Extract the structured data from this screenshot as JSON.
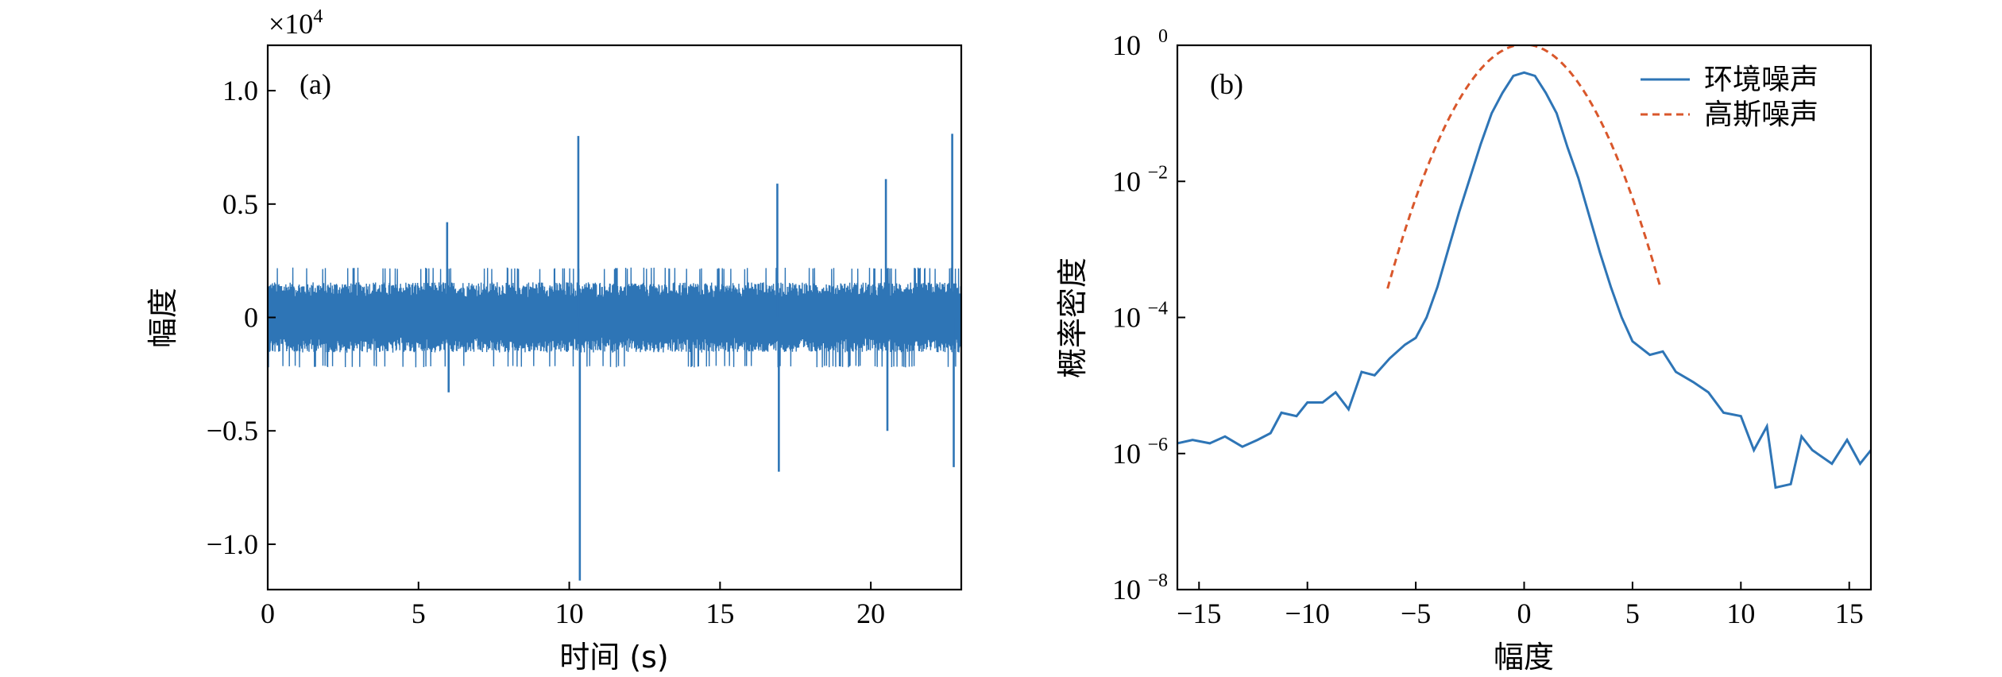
{
  "chart_data": [
    {
      "panel": "(a)",
      "type": "line",
      "xlabel": "时间 (s)",
      "ylabel": "幅度",
      "xlim": [
        0,
        23
      ],
      "ylim": [
        -1.2,
        1.2
      ],
      "y_scale_note": "×10^4",
      "x_ticks": [
        0,
        5,
        10,
        15,
        20
      ],
      "x_tick_labels": [
        "0",
        "5",
        "10",
        "15",
        "20"
      ],
      "y_ticks": [
        -1.0,
        -0.5,
        0,
        0.5,
        1.0
      ],
      "y_tick_labels": [
        "−1.0",
        "−0.5",
        "0",
        "0.5",
        "1.0"
      ],
      "color": "#2E75B6",
      "noise_band": [
        -0.2,
        0.2
      ],
      "spikes": [
        {
          "x": 5.95,
          "y": 0.42
        },
        {
          "x": 6.0,
          "y": -0.33
        },
        {
          "x": 10.3,
          "y": 0.8
        },
        {
          "x": 10.35,
          "y": -1.16
        },
        {
          "x": 16.9,
          "y": 0.59
        },
        {
          "x": 16.95,
          "y": -0.68
        },
        {
          "x": 20.5,
          "y": 0.61
        },
        {
          "x": 20.55,
          "y": -0.5
        },
        {
          "x": 22.7,
          "y": 0.81
        },
        {
          "x": 22.75,
          "y": -0.66
        }
      ]
    },
    {
      "panel": "(b)",
      "type": "line",
      "xlabel": "幅度",
      "ylabel": "概率密度",
      "xlim": [
        -16,
        16
      ],
      "ylim_log10": [
        -8,
        0
      ],
      "y_scale": "log",
      "x_ticks": [
        -15,
        -10,
        -5,
        0,
        5,
        10,
        15
      ],
      "x_tick_labels": [
        "−15",
        "−10",
        "−5",
        "0",
        "5",
        "10",
        "15"
      ],
      "y_ticks_exp": [
        -8,
        -6,
        -4,
        -2,
        0
      ],
      "legend": [
        "环境噪声",
        "高斯噪声"
      ],
      "legend_position": "top-right",
      "series": [
        {
          "name": "环境噪声",
          "style": "solid",
          "color": "#2E75B6",
          "x": [
            -16,
            -15.3,
            -14.5,
            -13.8,
            -13,
            -12.3,
            -11.7,
            -11.2,
            -10.5,
            -10,
            -9.3,
            -8.7,
            -8.1,
            -7.5,
            -6.9,
            -6.2,
            -5.5,
            -5,
            -4.5,
            -4,
            -3.5,
            -3,
            -2.5,
            -2,
            -1.5,
            -1,
            -0.5,
            0,
            0.5,
            1,
            1.5,
            2,
            2.5,
            3,
            3.5,
            4,
            4.5,
            5,
            5.8,
            6.4,
            7,
            7.8,
            8.5,
            9.2,
            10,
            10.6,
            11.2,
            11.6,
            12.3,
            12.8,
            13.3,
            14.2,
            14.9,
            15.5,
            16
          ],
          "y_log10": [
            -5.85,
            -5.8,
            -5.85,
            -5.75,
            -5.9,
            -5.8,
            -5.7,
            -5.4,
            -5.45,
            -5.25,
            -5.25,
            -5.1,
            -5.35,
            -4.8,
            -4.85,
            -4.6,
            -4.4,
            -4.3,
            -4.0,
            -3.55,
            -3.0,
            -2.45,
            -1.95,
            -1.45,
            -1.0,
            -0.7,
            -0.45,
            -0.4,
            -0.45,
            -0.7,
            -1.0,
            -1.5,
            -1.95,
            -2.5,
            -3.05,
            -3.55,
            -4.0,
            -4.35,
            -4.55,
            -4.5,
            -4.8,
            -4.95,
            -5.1,
            -5.4,
            -5.45,
            -5.95,
            -5.6,
            -6.5,
            -6.45,
            -5.75,
            -5.95,
            -6.15,
            -5.8,
            -6.15,
            -5.95
          ]
        },
        {
          "name": "高斯噪声",
          "style": "dashed",
          "color": "#D9572B",
          "sigma": 1.55
        }
      ]
    }
  ]
}
